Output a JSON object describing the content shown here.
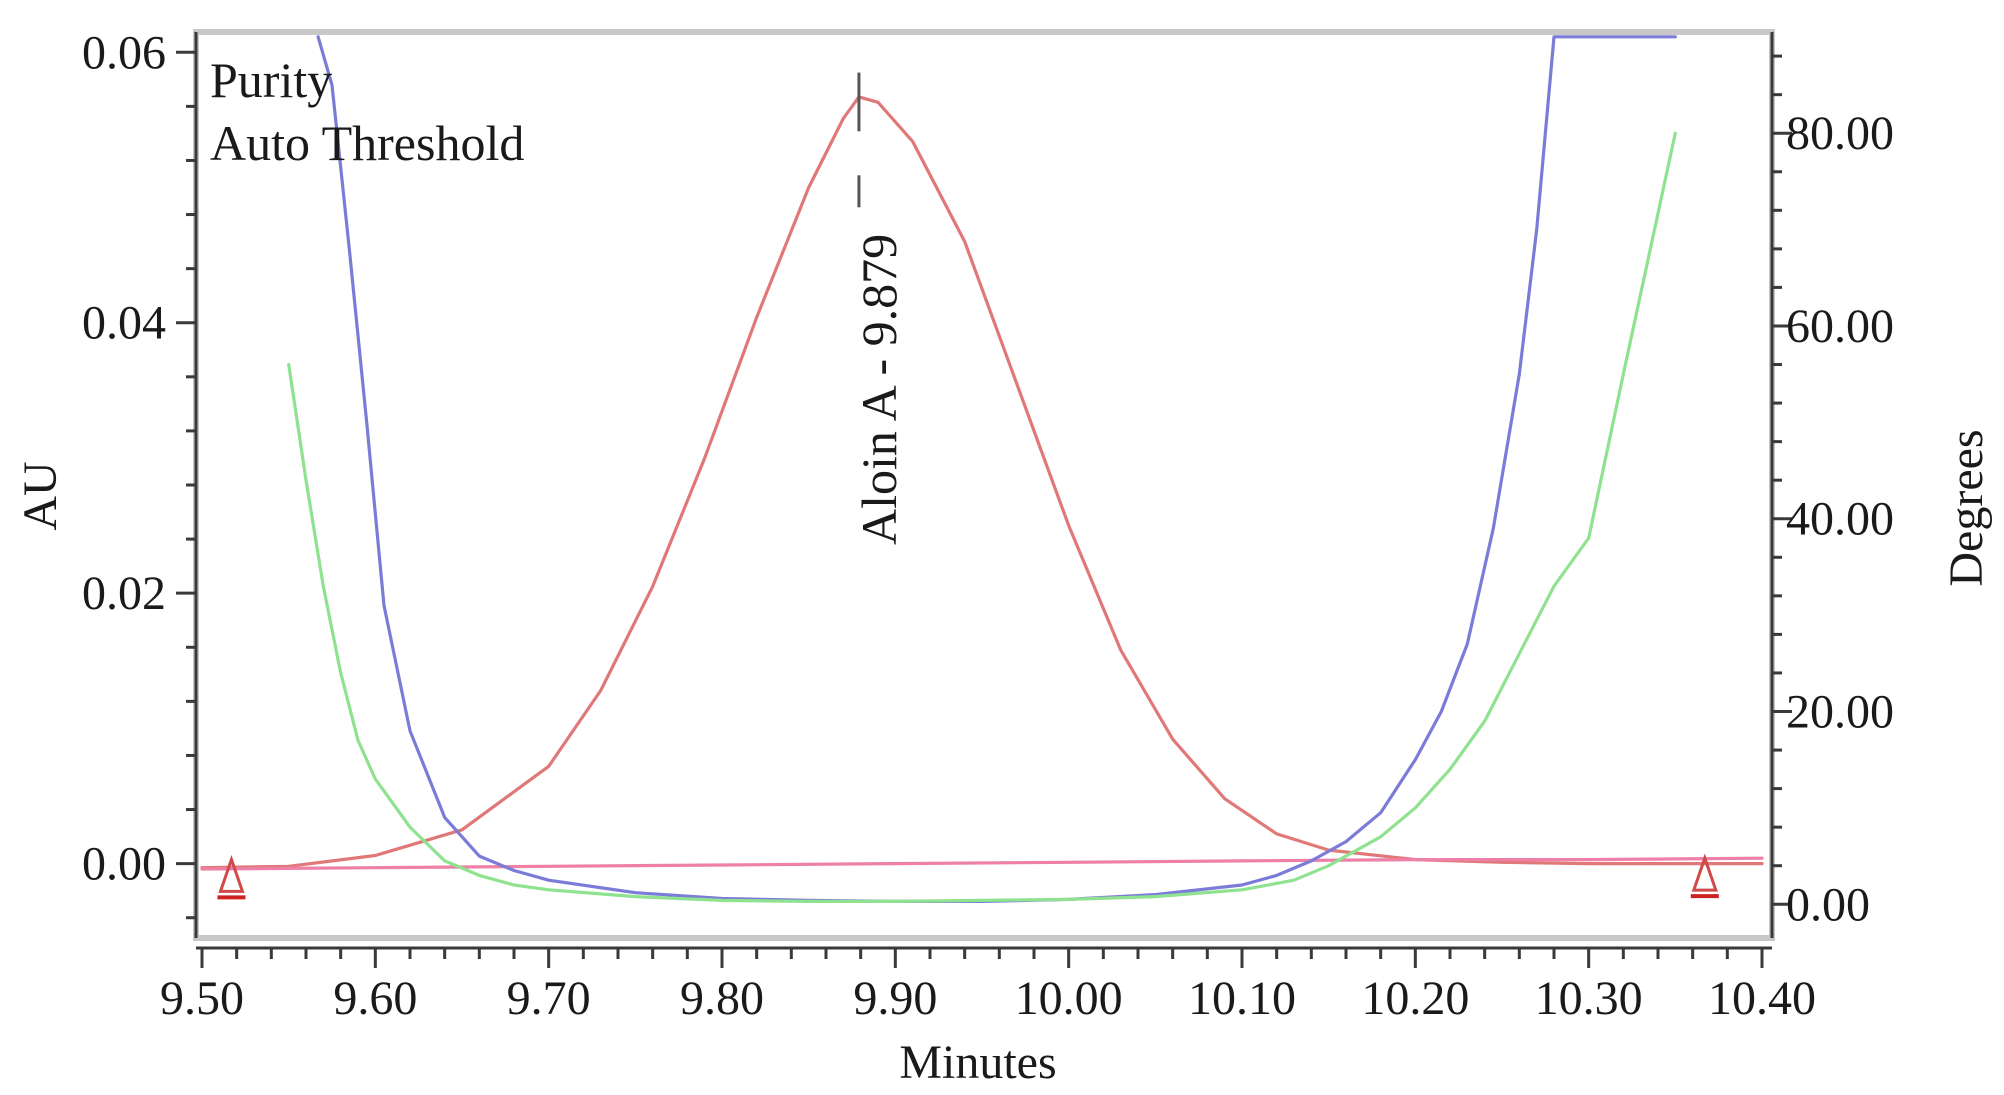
{
  "chart_data": {
    "type": "line",
    "title": "",
    "xlabel": "Minutes",
    "ylabel_left": "AU",
    "ylabel_right": "Degrees",
    "xlim": [
      9.5,
      10.4
    ],
    "ylim_left": [
      -0.0055,
      0.0615
    ],
    "ylim_right": [
      -3.5,
      90.5
    ],
    "x_ticks": [
      "9.50",
      "9.60",
      "9.70",
      "9.80",
      "9.90",
      "10.00",
      "10.10",
      "10.20",
      "10.30",
      "10.40"
    ],
    "y_left_ticks": [
      "0.00",
      "0.02",
      "0.04",
      "0.06"
    ],
    "y_right_ticks": [
      "0.00",
      "20.00",
      "40.00",
      "60.00",
      "80.00"
    ],
    "legend": [
      "Purity",
      "Auto Threshold"
    ],
    "legend_position": "top-left",
    "peak_label": "Aloin A - 9.879",
    "peak_marker": {
      "x": 9.879,
      "y_au": 0.0585,
      "y_au_bottom": 0.0546
    },
    "integration_markers": [
      {
        "x": 9.517,
        "y_au": -0.0025
      },
      {
        "x": 10.367,
        "y_au": -0.0024
      }
    ],
    "series": [
      {
        "name": "",
        "axis": "left",
        "color": "#e07878",
        "x": [
          9.5,
          9.55,
          9.6,
          9.65,
          9.7,
          9.73,
          9.76,
          9.79,
          9.82,
          9.85,
          9.87,
          9.879,
          9.89,
          9.91,
          9.94,
          9.97,
          10.0,
          10.03,
          10.06,
          10.09,
          10.12,
          10.15,
          10.2,
          10.25,
          10.3,
          10.4
        ],
        "y": [
          -0.0003,
          -0.0002,
          0.0006,
          0.0025,
          0.0072,
          0.0128,
          0.0205,
          0.03,
          0.0404,
          0.05,
          0.0551,
          0.0567,
          0.0563,
          0.0534,
          0.046,
          0.0355,
          0.025,
          0.0158,
          0.0092,
          0.0048,
          0.0022,
          0.001,
          0.0003,
          0.0001,
          0.0,
          0.0
        ]
      },
      {
        "name": "",
        "axis": "left",
        "color": "#ee7fa6",
        "x": [
          9.5,
          9.6,
          9.7,
          9.8,
          9.9,
          10.0,
          10.1,
          10.2,
          10.3,
          10.4
        ],
        "y": [
          -0.0004,
          -0.0003,
          -0.0002,
          -0.0001,
          0.0,
          0.0001,
          0.0002,
          0.0003,
          0.0003,
          0.0004
        ]
      },
      {
        "name": "Purity",
        "axis": "right",
        "color": "#7b7bd8",
        "x": [
          9.567,
          9.575,
          9.585,
          9.595,
          9.605,
          9.62,
          9.64,
          9.66,
          9.68,
          9.7,
          9.75,
          9.8,
          9.85,
          9.9,
          9.95,
          10.0,
          10.05,
          10.1,
          10.12,
          10.14,
          10.16,
          10.18,
          10.2,
          10.215,
          10.23,
          10.245,
          10.26,
          10.27,
          10.28,
          10.35
        ],
        "y": [
          90.0,
          85.0,
          68.0,
          50.0,
          31.0,
          18.0,
          9.0,
          5.0,
          3.5,
          2.5,
          1.2,
          0.6,
          0.4,
          0.3,
          0.3,
          0.5,
          1.0,
          2.0,
          3.0,
          4.5,
          6.5,
          9.5,
          15.0,
          20.0,
          27.0,
          39.0,
          55.0,
          70.0,
          90.0,
          90.0
        ]
      },
      {
        "name": "Auto Threshold",
        "axis": "right",
        "color": "#8fe28f",
        "x": [
          9.55,
          9.56,
          9.57,
          9.58,
          9.59,
          9.6,
          9.62,
          9.64,
          9.66,
          9.68,
          9.7,
          9.75,
          9.8,
          9.85,
          9.9,
          9.95,
          10.0,
          10.05,
          10.1,
          10.13,
          10.15,
          10.18,
          10.2,
          10.22,
          10.24,
          10.26,
          10.28,
          10.3,
          10.32,
          10.35
        ],
        "y": [
          56.0,
          44.0,
          33.0,
          24.0,
          17.0,
          13.0,
          8.0,
          4.5,
          3.0,
          2.0,
          1.5,
          0.8,
          0.4,
          0.3,
          0.3,
          0.4,
          0.5,
          0.8,
          1.5,
          2.5,
          4.0,
          7.0,
          10.0,
          14.0,
          19.0,
          26.0,
          33.0,
          38.0,
          55.0,
          80.0
        ]
      }
    ]
  }
}
